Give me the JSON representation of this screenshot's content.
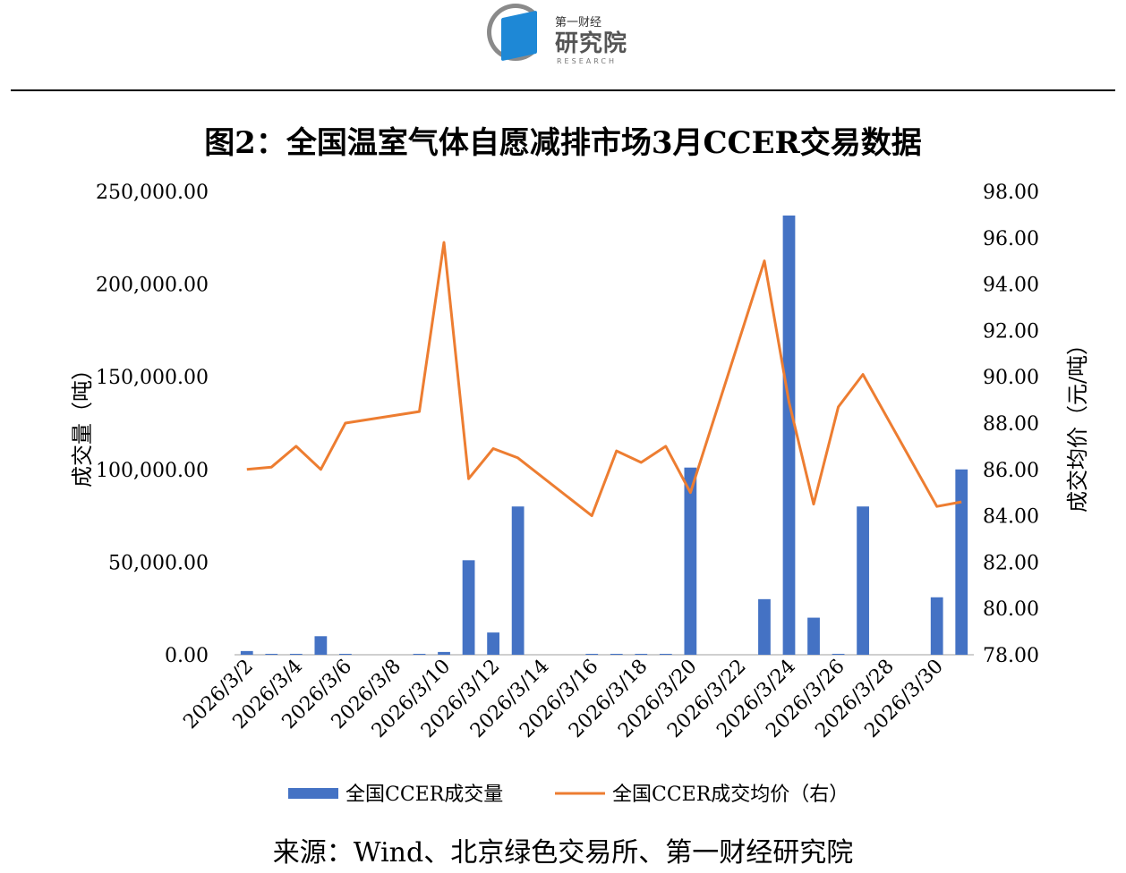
{
  "logo": {
    "small": "第一财经",
    "big": "研究院",
    "sub": "RESEARCH"
  },
  "title": "图2：全国温室气体自愿减排市场3月CCER交易数据",
  "source": "来源：Wind、北京绿色交易所、第一财经研究院",
  "colors": {
    "bar": "#4472C4",
    "line": "#ED7D31"
  },
  "chart_data": {
    "type": "bar",
    "categories": [
      "2026/3/2",
      "2026/3/3",
      "2026/3/4",
      "2026/3/5",
      "2026/3/6",
      "2026/3/9",
      "2026/3/10",
      "2026/3/11",
      "2026/3/12",
      "2026/3/13",
      "2026/3/16",
      "2026/3/17",
      "2026/3/18",
      "2026/3/19",
      "2026/3/20",
      "2026/3/23",
      "2026/3/24",
      "2026/3/25",
      "2026/3/26",
      "2026/3/27",
      "2026/3/30",
      "2026/3/31"
    ],
    "x_tick_labels": [
      "2026/3/2",
      "2026/3/4",
      "2026/3/6",
      "2026/3/8",
      "2026/3/10",
      "2026/3/12",
      "2026/3/14",
      "2026/3/16",
      "2026/3/18",
      "2026/3/20",
      "2026/3/22",
      "2026/3/24",
      "2026/3/26",
      "2026/3/28",
      "2026/3/30"
    ],
    "series": [
      {
        "name": "全国CCER成交量",
        "type": "bar",
        "axis": "left",
        "values": [
          2000,
          500,
          500,
          10000,
          500,
          500,
          1500,
          51000,
          12000,
          80000,
          500,
          500,
          500,
          500,
          101000,
          30000,
          237000,
          20000,
          500,
          80000,
          31000,
          100000
        ]
      },
      {
        "name": "全国CCER成交均价（右）",
        "type": "line",
        "axis": "right",
        "values": [
          86.0,
          86.1,
          87.0,
          86.0,
          88.0,
          88.5,
          95.8,
          85.6,
          86.9,
          86.5,
          84.0,
          86.8,
          86.3,
          87.0,
          85.0,
          95.0,
          88.9,
          84.5,
          88.7,
          90.1,
          84.4,
          84.6
        ]
      }
    ],
    "y_left": {
      "label": "成交量（吨）",
      "ylim": [
        0,
        250000
      ],
      "ticks": [
        "0.00",
        "50,000.00",
        "100,000.00",
        "150,000.00",
        "200,000.00",
        "250,000.00"
      ]
    },
    "y_right": {
      "label": "成交均价（元/吨）",
      "ylim": [
        78,
        98
      ],
      "ticks": [
        "78.00",
        "80.00",
        "82.00",
        "84.00",
        "86.00",
        "88.00",
        "90.00",
        "92.00",
        "94.00",
        "96.00",
        "98.00"
      ]
    },
    "legend": "bottom",
    "grid": false
  }
}
